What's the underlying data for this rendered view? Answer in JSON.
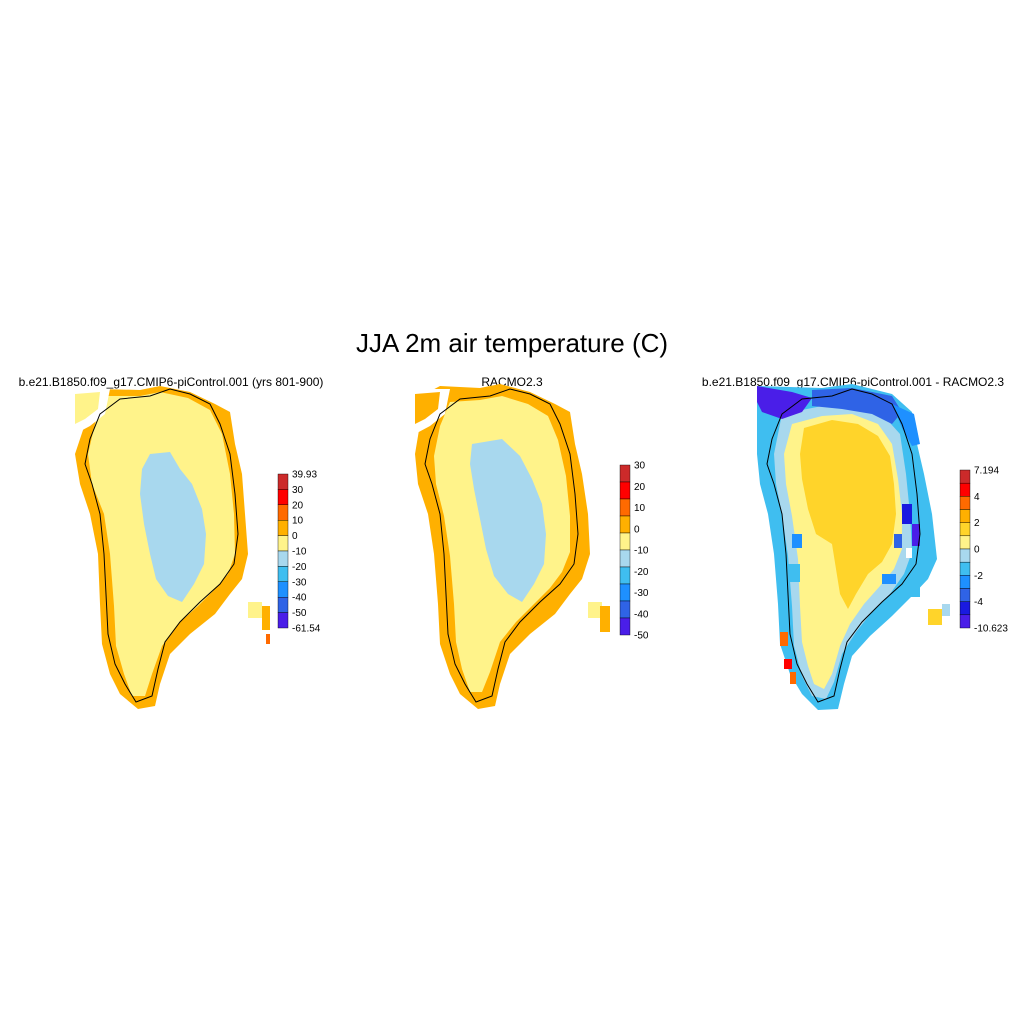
{
  "title": "JJA 2m air temperature (C)",
  "panels": [
    {
      "title": "b.e21.B1850.f09_g17.CMIP6-piControl.001 (yrs 801-900)",
      "colorbar": {
        "labels": [
          "39.93",
          "30",
          "20",
          "10",
          "0",
          "-10",
          "-20",
          "-30",
          "-40",
          "-50",
          "-61.54"
        ],
        "colors": [
          "#cc2a2a",
          "#ff0000",
          "#ff6a00",
          "#ffb000",
          "#fff38a",
          "#a8d8ee",
          "#3fbef0",
          "#1e90ff",
          "#2f63e6",
          "#4a1ee8"
        ]
      }
    },
    {
      "title": "RACMO2.3",
      "colorbar": {
        "labels": [
          "30",
          "20",
          "10",
          "0",
          "-10",
          "-20",
          "-30",
          "-40",
          "-50"
        ],
        "colors": [
          "#cc2a2a",
          "#ff0000",
          "#ff6a00",
          "#ffb000",
          "#fff38a",
          "#a8d8ee",
          "#3fbef0",
          "#1e90ff",
          "#2f63e6",
          "#4a1ee8"
        ]
      }
    },
    {
      "title": "b.e21.B1850.f09_g17.CMIP6-piControl.001 - RACMO2.3",
      "colorbar": {
        "labels": [
          "7.194",
          "4",
          "2",
          "0",
          "-2",
          "-4",
          "-10.623"
        ],
        "colors": [
          "#cc2a2a",
          "#ff0000",
          "#ff6a00",
          "#ffb000",
          "#ffd42a",
          "#fff38a",
          "#a8d8ee",
          "#3fbef0",
          "#1e90ff",
          "#2f63e6",
          "#1a1ae0",
          "#4a1ee8"
        ]
      }
    }
  ]
}
